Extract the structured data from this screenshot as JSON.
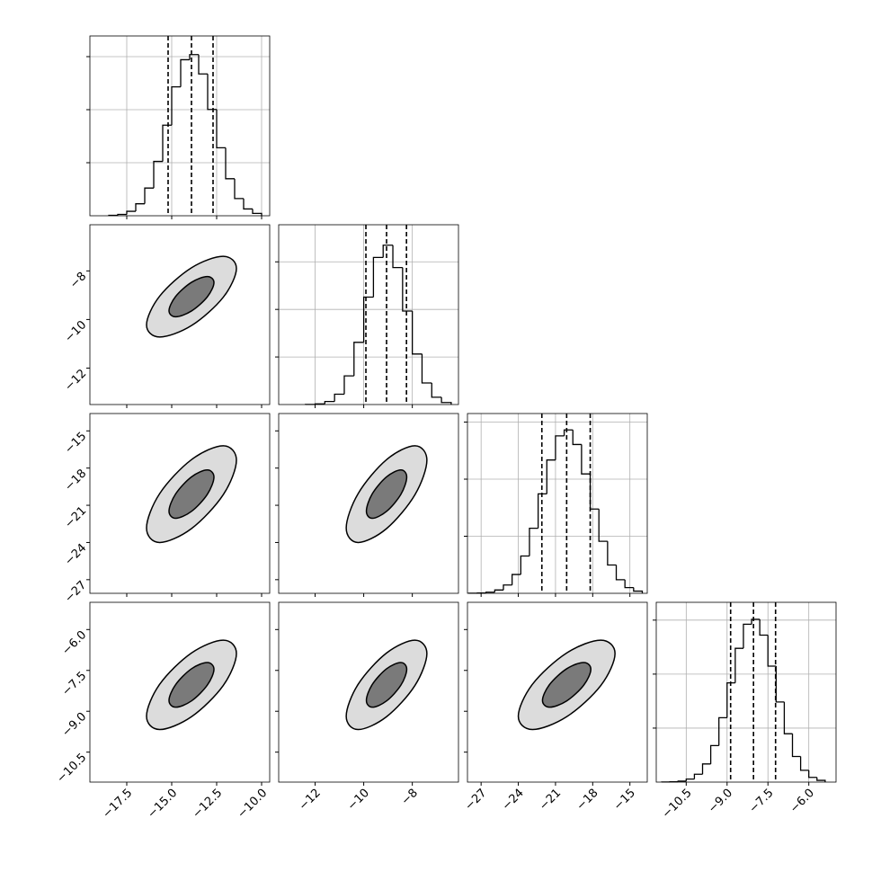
{
  "chart_data": {
    "type": "corner",
    "parameters": [
      {
        "lim": [
          -19.55,
          -9.55
        ],
        "ticks": [
          {
            "value": -17.5,
            "label": "−17.5"
          },
          {
            "value": -15,
            "label": "−15.0"
          },
          {
            "value": -12.5,
            "label": "−12.5"
          },
          {
            "value": -10,
            "label": "−10.0"
          }
        ]
      },
      {
        "lim": [
          -13.5,
          -6.1
        ],
        "ticks": [
          {
            "value": -12,
            "label": "−12"
          },
          {
            "value": -10,
            "label": "−10"
          },
          {
            "value": -8,
            "label": "−8"
          }
        ]
      },
      {
        "lim": [
          -28.1,
          -13.6
        ],
        "ticks": [
          {
            "value": -27,
            "label": "−27"
          },
          {
            "value": -24,
            "label": "−24"
          },
          {
            "value": -21,
            "label": "−21"
          },
          {
            "value": -18,
            "label": "−18"
          },
          {
            "value": -15,
            "label": "−15"
          }
        ]
      },
      {
        "lim": [
          -11.6,
          -5.0
        ],
        "ticks": [
          {
            "value": -10.5,
            "label": "−10.5"
          },
          {
            "value": -9,
            "label": "−9.0"
          },
          {
            "value": -7.5,
            "label": "−7.5"
          },
          {
            "value": -6,
            "label": "−6.0"
          }
        ]
      }
    ],
    "histograms": [
      {
        "bins": [
          -18.5,
          -18,
          -17.5,
          -17,
          -16.5,
          -16,
          -15.5,
          -15,
          -14.5,
          -14,
          -13.5,
          -13,
          -12.5,
          -12,
          -11.5,
          -11,
          -10.5,
          -10
        ],
        "counts": [
          4,
          13,
          42,
          113,
          261,
          512,
          854,
          1215,
          1471,
          1519,
          1337,
          1002,
          641,
          349,
          162,
          64,
          22
        ],
        "ylim": [
          0,
          1695
        ],
        "yticks": [
          500,
          1000,
          1500
        ],
        "quantiles": [
          -15.2,
          -13.9,
          -12.7
        ]
      },
      {
        "bins": [
          -12.4,
          -12,
          -11.6,
          -11.2,
          -10.8,
          -10.4,
          -10,
          -9.6,
          -9.2,
          -8.8,
          -8.4,
          -8,
          -7.6,
          -7.2,
          -6.8,
          -6.4
        ],
        "counts": [
          1,
          7,
          32,
          109,
          301,
          654,
          1129,
          1546,
          1675,
          1440,
          983,
          531,
          227,
          77,
          21
        ],
        "ylim": [
          0,
          1890
        ],
        "yticks": [
          500,
          1000,
          1500
        ],
        "quantiles": [
          -9.91,
          -9.06,
          -8.24
        ]
      },
      {
        "bins": [
          -28,
          -27.3,
          -26.6,
          -25.9,
          -25.2,
          -24.5,
          -23.8,
          -23.1,
          -22.4,
          -21.7,
          -21,
          -20.3,
          -19.6,
          -18.9,
          -18.2,
          -17.5,
          -16.8,
          -16.1,
          -15.4,
          -14.7,
          -14
        ],
        "counts": [
          1,
          3,
          10,
          29,
          73,
          165,
          327,
          570,
          871,
          1168,
          1379,
          1431,
          1304,
          1046,
          738,
          456,
          248,
          119,
          50,
          19
        ],
        "ylim": [
          0,
          1575
        ],
        "yticks": [
          500,
          1000,
          1500
        ],
        "quantiles": [
          -22.1,
          -20.1,
          -18.2
        ]
      },
      {
        "bins": [
          -11.4,
          -11.1,
          -10.8,
          -10.5,
          -10.2,
          -9.9,
          -9.6,
          -9.3,
          -9,
          -8.7,
          -8.4,
          -8.1,
          -7.8,
          -7.5,
          -7.2,
          -6.9,
          -6.6,
          -6.3,
          -6,
          -5.7,
          -5.4
        ],
        "counts": [
          1,
          3,
          9,
          28,
          73,
          168,
          338,
          596,
          919,
          1239,
          1462,
          1508,
          1361,
          1074,
          742,
          448,
          237,
          109,
          44,
          16
        ],
        "ylim": [
          0,
          1665
        ],
        "yticks": [
          500,
          1000,
          1500
        ],
        "quantiles": [
          -8.87,
          -8.03,
          -7.22
        ]
      }
    ],
    "pairs": [
      {
        "contours": [
          {
            "x": [
              -11.4,
              -12.13,
              -13.9,
              -15.67,
              -16.4,
              -15.67,
              -13.9,
              -12.13
            ],
            "y": [
              -7.9,
              -7.4,
              -7.87,
              -9.04,
              -10.22,
              -10.72,
              -10.25,
              -9.08
            ]
          },
          {
            "x": [
              -12.65,
              -13.02,
              -13.9,
              -14.78,
              -15.15,
              -14.78,
              -13.9,
              -13.02
            ],
            "y": [
              -8.48,
              -8.23,
              -8.47,
              -9.05,
              -9.64,
              -9.89,
              -9.65,
              -9.07
            ]
          }
        ]
      },
      {
        "contours": [
          {
            "x": [
              -11.4,
              -12.13,
              -13.9,
              -15.67,
              -16.4,
              -15.67,
              -13.9,
              -12.13
            ],
            "y": [
              -17.37,
              -16.2,
              -17.32,
              -20.06,
              -22.83,
              -24,
              -22.88,
              -20.14
            ]
          },
          {
            "x": [
              -12.65,
              -13.02,
              -13.9,
              -14.78,
              -15.15,
              -14.78,
              -13.9,
              -13.02
            ],
            "y": [
              -18.73,
              -18.15,
              -18.71,
              -20.08,
              -21.47,
              -22.05,
              -21.49,
              -20.12
            ]
          }
        ]
      },
      {
        "contours": [
          {
            "x": [
              -7.4,
              -7.89,
              -9.06,
              -10.23,
              -10.72,
              -10.23,
              -9.06,
              -7.89
            ],
            "y": [
              -17.37,
              -16.2,
              -17.32,
              -20.06,
              -22.83,
              -24,
              -22.88,
              -20.14
            ]
          },
          {
            "x": [
              -8.23,
              -8.47,
              -9.06,
              -9.65,
              -9.89,
              -9.65,
              -9.06,
              -8.47
            ],
            "y": [
              -18.73,
              -18.15,
              -18.71,
              -20.08,
              -21.47,
              -22.05,
              -21.49,
              -20.12
            ]
          }
        ]
      },
      {
        "contours": [
          {
            "x": [
              -11.4,
              -12.13,
              -13.9,
              -15.67,
              -16.4,
              -15.67,
              -13.9,
              -12.13
            ],
            "y": [
              -6.88,
              -6.39,
              -6.86,
              -8.01,
              -9.18,
              -9.67,
              -9.2,
              -8.05
            ]
          },
          {
            "x": [
              -12.65,
              -13.02,
              -13.9,
              -14.78,
              -15.15,
              -14.78,
              -13.9,
              -13.02
            ],
            "y": [
              -7.46,
              -7.21,
              -7.44,
              -8.02,
              -8.6,
              -8.85,
              -8.62,
              -8.04
            ]
          }
        ]
      },
      {
        "contours": [
          {
            "x": [
              -7.4,
              -7.89,
              -9.06,
              -10.23,
              -10.72,
              -10.23,
              -9.06,
              -7.89
            ],
            "y": [
              -6.88,
              -6.39,
              -6.86,
              -8.01,
              -9.18,
              -9.67,
              -9.2,
              -8.05
            ]
          },
          {
            "x": [
              -8.23,
              -8.47,
              -9.06,
              -9.65,
              -9.89,
              -9.65,
              -9.06,
              -8.47
            ],
            "y": [
              -7.46,
              -7.21,
              -7.44,
              -8.02,
              -8.6,
              -8.85,
              -8.62,
              -8.04
            ]
          }
        ]
      },
      {
        "contours": [
          {
            "x": [
              -16.2,
              -17.34,
              -20.1,
              -22.86,
              -24,
              -22.86,
              -20.1,
              -17.34
            ],
            "y": [
              -6.88,
              -6.39,
              -6.86,
              -8.01,
              -9.18,
              -9.67,
              -9.2,
              -8.05
            ]
          },
          {
            "x": [
              -18.15,
              -18.72,
              -20.1,
              -21.48,
              -22.05,
              -21.48,
              -20.1,
              -18.72
            ],
            "y": [
              -7.46,
              -7.21,
              -7.44,
              -8.02,
              -8.6,
              -8.85,
              -8.62,
              -8.04
            ]
          }
        ]
      }
    ],
    "color": "#000000",
    "contour_fills": [
      "#dcdcdc",
      "#7a7a7a"
    ],
    "grid": true
  }
}
